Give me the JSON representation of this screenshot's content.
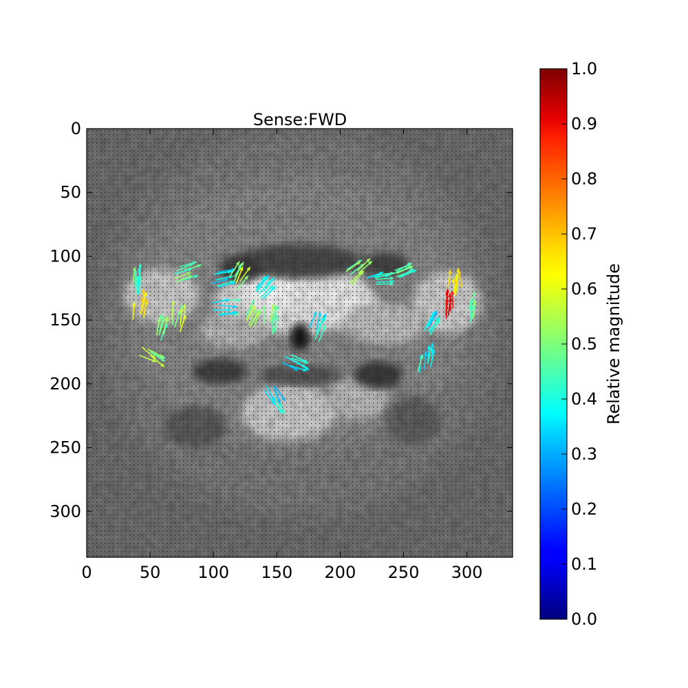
{
  "chart_data": {
    "type": "heatmap",
    "title": "Sense:FWD",
    "xlabel": "",
    "ylabel": "",
    "xlim": [
      0,
      336
    ],
    "ylim": [
      336,
      0
    ],
    "xticks": [
      0,
      50,
      100,
      150,
      200,
      250,
      300
    ],
    "yticks": [
      0,
      50,
      100,
      150,
      200,
      250,
      300
    ],
    "background": "grayscale density map with dot grid overlay",
    "colorbar": {
      "label": "Relative magnitude",
      "range": [
        0.0,
        1.0
      ],
      "ticks": [
        "0.0",
        "0.1",
        "0.2",
        "0.3",
        "0.4",
        "0.5",
        "0.6",
        "0.7",
        "0.8",
        "0.9",
        "1.0"
      ],
      "colormap": "jet"
    },
    "arrow_clusters": [
      {
        "x": 42,
        "y": 138,
        "magnitude": 0.65,
        "angle": -80
      },
      {
        "x": 38,
        "y": 118,
        "magnitude": 0.45,
        "angle": -85
      },
      {
        "x": 58,
        "y": 155,
        "magnitude": 0.5,
        "angle": -75
      },
      {
        "x": 72,
        "y": 148,
        "magnitude": 0.55,
        "angle": -80
      },
      {
        "x": 80,
        "y": 112,
        "magnitude": 0.5,
        "angle": -25
      },
      {
        "x": 52,
        "y": 178,
        "magnitude": 0.5,
        "angle": 30
      },
      {
        "x": 108,
        "y": 117,
        "magnitude": 0.35,
        "angle": -10
      },
      {
        "x": 110,
        "y": 140,
        "magnitude": 0.4,
        "angle": 0
      },
      {
        "x": 120,
        "y": 115,
        "magnitude": 0.55,
        "angle": -60
      },
      {
        "x": 130,
        "y": 145,
        "magnitude": 0.5,
        "angle": -70
      },
      {
        "x": 140,
        "y": 125,
        "magnitude": 0.35,
        "angle": -50
      },
      {
        "x": 145,
        "y": 150,
        "magnitude": 0.5,
        "angle": -80
      },
      {
        "x": 165,
        "y": 185,
        "magnitude": 0.35,
        "angle": 25
      },
      {
        "x": 148,
        "y": 213,
        "magnitude": 0.35,
        "angle": 60
      },
      {
        "x": 183,
        "y": 155,
        "magnitude": 0.4,
        "angle": -70
      },
      {
        "x": 215,
        "y": 112,
        "magnitude": 0.5,
        "angle": -40
      },
      {
        "x": 232,
        "y": 118,
        "magnitude": 0.4,
        "angle": -10
      },
      {
        "x": 250,
        "y": 110,
        "magnitude": 0.45,
        "angle": -25
      },
      {
        "x": 288,
        "y": 138,
        "magnitude": 0.9,
        "angle": -85
      },
      {
        "x": 290,
        "y": 120,
        "magnitude": 0.6,
        "angle": -90
      },
      {
        "x": 302,
        "y": 140,
        "magnitude": 0.45,
        "angle": -80
      },
      {
        "x": 275,
        "y": 152,
        "magnitude": 0.35,
        "angle": -60
      },
      {
        "x": 268,
        "y": 180,
        "magnitude": 0.4,
        "angle": -80
      }
    ]
  }
}
